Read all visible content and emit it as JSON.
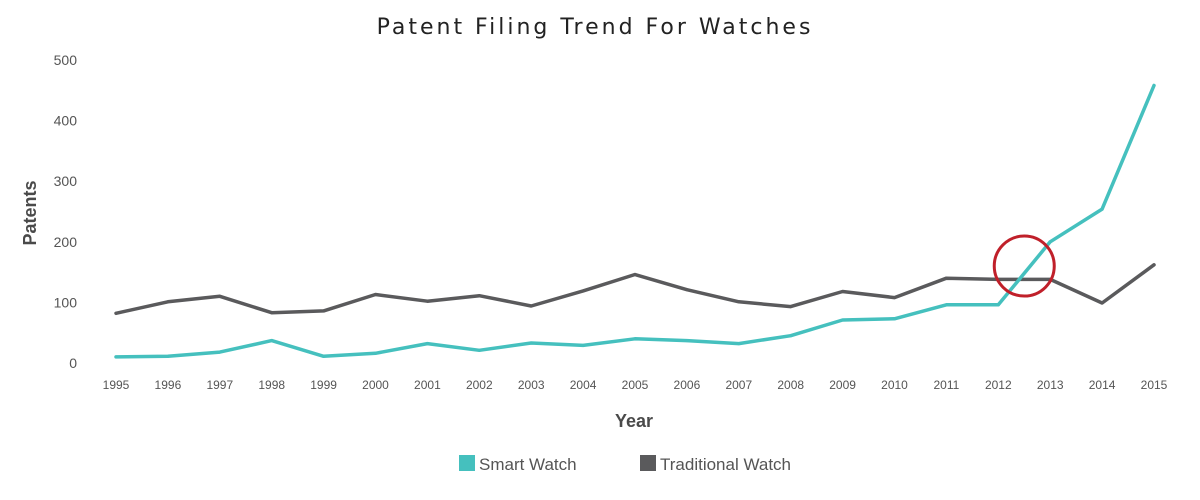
{
  "chart_data": {
    "type": "line",
    "title": "Patent Filing Trend For Watches",
    "xlabel": "Year",
    "ylabel": "Patents",
    "x": [
      "1995",
      "1996",
      "1997",
      "1998",
      "1999",
      "2000",
      "2001",
      "2002",
      "2003",
      "2004",
      "2005",
      "2006",
      "2007",
      "2008",
      "2009",
      "2010",
      "2011",
      "2012",
      "2013",
      "2014",
      "2015"
    ],
    "yticks": [
      "0",
      "100",
      "200",
      "300",
      "400",
      "500"
    ],
    "ylim": [
      0,
      500
    ],
    "grid": false,
    "legend_position": "bottom",
    "series": [
      {
        "name": "Smart Watch",
        "color": "#45c0be",
        "values": [
          10,
          11,
          18,
          37,
          11,
          16,
          32,
          21,
          33,
          29,
          40,
          37,
          32,
          45,
          71,
          73,
          96,
          96,
          200,
          254,
          458
        ]
      },
      {
        "name": "Traditional Watch",
        "color": "#5a5a5c",
        "values": [
          82,
          101,
          110,
          83,
          86,
          113,
          102,
          111,
          94,
          119,
          146,
          121,
          101,
          93,
          118,
          108,
          140,
          138,
          138,
          99,
          162
        ]
      }
    ],
    "annotations": [
      {
        "type": "circle",
        "color": "#c0202a",
        "x": "2012",
        "x_offset_years": 0.5,
        "y": 160
      }
    ]
  }
}
